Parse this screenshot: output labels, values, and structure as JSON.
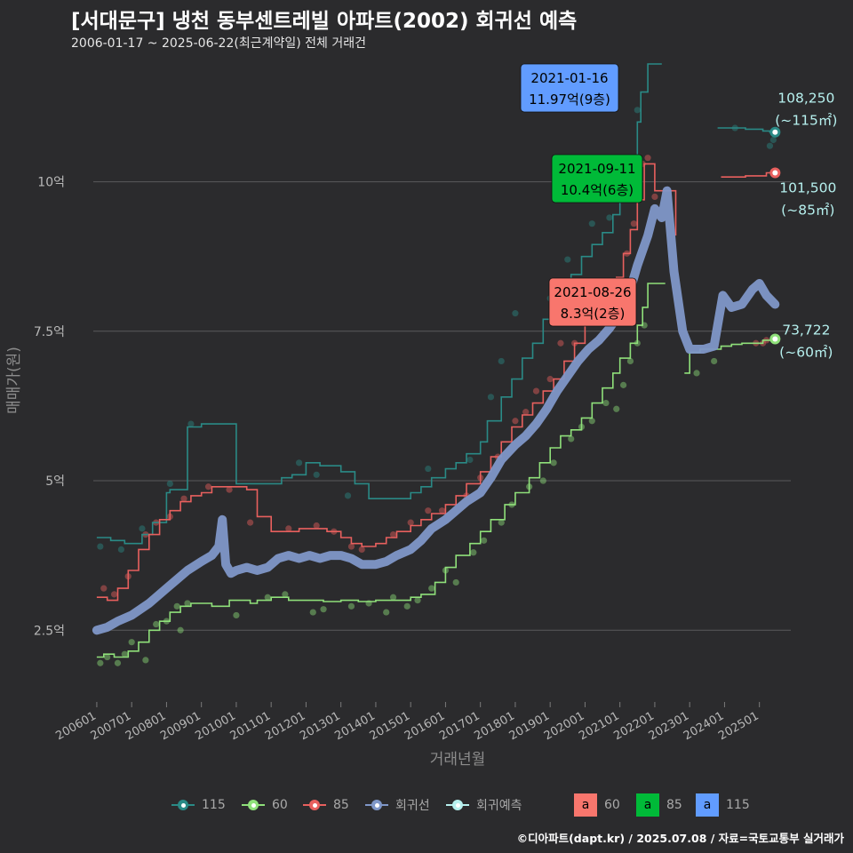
{
  "header": {
    "title": "[서대문구] 냉천 동부센트레빌 아파트(2002) 회귀선 예측",
    "subtitle": "2006-01-17 ~ 2025-06-22(최근계약일) 전체 거래건"
  },
  "footer": "©디아파트(dapt.kr) / 2025.07.08 / 자료=국토교통부 실거래가",
  "colors": {
    "background": "#2b2b2d",
    "s115": "#2a8a86",
    "s60": "#8fe07a",
    "s85": "#e8605e",
    "regression": "#7f97c8",
    "prediction": "#b6f0ee",
    "box60": "#f8766d",
    "box85": "#00ba38",
    "box115": "#619cff"
  },
  "legend": {
    "items": [
      {
        "label": "115",
        "color": "#2a8a86"
      },
      {
        "label": "60",
        "color": "#8fe07a"
      },
      {
        "label": "85",
        "color": "#e8605e"
      },
      {
        "label": "회귀선",
        "color": "#7f97c8"
      },
      {
        "label": "회귀예측",
        "color": "#b6f0ee"
      }
    ],
    "box_letter": "a",
    "boxes": [
      {
        "label": "60",
        "color": "#f8766d"
      },
      {
        "label": "85",
        "color": "#00ba38"
      },
      {
        "label": "115",
        "color": "#619cff"
      }
    ]
  },
  "chart_data": {
    "type": "line",
    "title": "[서대문구] 냉천 동부센트레빌 아파트(2002) 회귀선 예측",
    "xlabel": "거래년월",
    "ylabel": "매매가(원)",
    "x_range": [
      2005.9,
      2025.9
    ],
    "ylim": [
      1.3,
      12.0
    ],
    "x_tick_positions": [
      2006,
      2007,
      2008,
      2009,
      2010,
      2011,
      2012,
      2013,
      2014,
      2015,
      2016,
      2017,
      2018,
      2019,
      2020,
      2021,
      2022,
      2023,
      2024,
      2025
    ],
    "x_tick_labels": [
      "200601",
      "200701",
      "200801",
      "200901",
      "201001",
      "201101",
      "201201",
      "201301",
      "201401",
      "201501",
      "201601",
      "201701",
      "201801",
      "201901",
      "202001",
      "202101",
      "202201",
      "202301",
      "202401",
      "202501"
    ],
    "y_ticks": [
      2.5,
      5,
      7.5,
      10
    ],
    "y_tick_labels": [
      "2.5억",
      "5억",
      "7.5억",
      "10억"
    ],
    "grid": true,
    "series": [
      {
        "name": "115",
        "color": "#2a8a86",
        "x": [
          2006.0,
          2006.4,
          2006.6,
          2006.8,
          2007.0,
          2007.3,
          2007.6,
          2008.0,
          2008.1,
          2008.6,
          2009.0,
          2009.5,
          2009.95,
          2010.0,
          2010.5,
          2011.0,
          2011.3,
          2011.6,
          2012.0,
          2012.4,
          2012.8,
          2013.0,
          2013.4,
          2013.8,
          2014.2,
          2014.6,
          2015.0,
          2015.3,
          2015.6,
          2016.0,
          2016.3,
          2016.6,
          2017.0,
          2017.2,
          2017.6,
          2017.9,
          2018.2,
          2018.5,
          2018.8,
          2019.0,
          2019.3,
          2019.6,
          2019.9,
          2020.2,
          2020.5,
          2020.8,
          2021.0,
          2021.05,
          2021.4,
          2021.5,
          2021.6,
          2021.8,
          2021.85,
          2022.2
        ],
        "values": [
          4.05,
          4.0,
          4.0,
          3.95,
          3.95,
          4.1,
          4.3,
          4.8,
          4.85,
          5.9,
          5.95,
          5.95,
          5.95,
          4.95,
          4.95,
          4.95,
          5.05,
          5.1,
          5.3,
          5.25,
          5.25,
          5.15,
          4.95,
          4.7,
          4.7,
          4.7,
          4.8,
          4.9,
          5.05,
          5.2,
          5.3,
          5.45,
          5.65,
          6.0,
          6.4,
          6.7,
          7.05,
          7.3,
          7.7,
          7.95,
          8.15,
          8.45,
          8.75,
          8.95,
          9.15,
          9.45,
          9.9,
          10.1,
          10.4,
          11.0,
          11.5,
          11.97,
          11.97,
          11.97
        ]
      },
      {
        "name": "115-recent",
        "color": "#2a8a86",
        "x": [
          2023.8,
          2024.0,
          2024.3,
          2024.6,
          2024.9,
          2025.1,
          2025.3,
          2025.45
        ],
        "values": [
          10.9,
          10.9,
          10.9,
          10.88,
          10.88,
          10.85,
          10.83,
          10.83
        ]
      },
      {
        "name": "60",
        "color": "#8fe07a",
        "x": [
          2006.0,
          2006.2,
          2006.5,
          2006.9,
          2007.2,
          2007.5,
          2007.8,
          2008.1,
          2008.4,
          2008.7,
          2009.0,
          2009.3,
          2009.8,
          2010.2,
          2010.4,
          2010.6,
          2011.0,
          2011.5,
          2012.0,
          2012.5,
          2013.0,
          2013.5,
          2014.0,
          2014.5,
          2015.0,
          2015.3,
          2015.7,
          2016.0,
          2016.3,
          2016.7,
          2017.0,
          2017.3,
          2017.7,
          2018.0,
          2018.4,
          2018.7,
          2019.0,
          2019.3,
          2019.6,
          2019.9,
          2020.2,
          2020.5,
          2020.8,
          2021.0,
          2021.3,
          2021.5,
          2021.65,
          2021.8,
          2022.0,
          2022.3
        ],
        "values": [
          2.05,
          2.1,
          2.05,
          2.15,
          2.3,
          2.5,
          2.65,
          2.8,
          2.9,
          2.95,
          2.95,
          2.9,
          3.0,
          3.0,
          2.95,
          3.0,
          3.05,
          3.0,
          3.0,
          2.98,
          3.0,
          2.98,
          3.0,
          3.0,
          3.05,
          3.1,
          3.3,
          3.55,
          3.75,
          3.95,
          4.15,
          4.35,
          4.6,
          4.8,
          5.05,
          5.3,
          5.55,
          5.75,
          5.85,
          6.05,
          6.3,
          6.55,
          6.8,
          7.05,
          7.3,
          7.6,
          7.9,
          8.3,
          8.3,
          8.3
        ]
      },
      {
        "name": "60-recent",
        "color": "#8fe07a",
        "x": [
          2022.85,
          2023.0,
          2023.3,
          2023.6,
          2023.9,
          2024.2,
          2024.5,
          2024.8,
          2025.1,
          2025.45
        ],
        "values": [
          6.8,
          7.15,
          7.2,
          7.2,
          7.25,
          7.28,
          7.3,
          7.3,
          7.35,
          7.37
        ]
      },
      {
        "name": "85",
        "color": "#e8605e",
        "x": [
          2006.0,
          2006.3,
          2006.6,
          2006.9,
          2007.2,
          2007.5,
          2007.8,
          2008.1,
          2008.4,
          2008.7,
          2009.0,
          2009.3,
          2009.6,
          2010.0,
          2010.3,
          2010.6,
          2011.0,
          2011.4,
          2011.8,
          2012.2,
          2012.6,
          2013.0,
          2013.3,
          2013.6,
          2014.0,
          2014.3,
          2014.6,
          2015.0,
          2015.3,
          2015.6,
          2016.0,
          2016.3,
          2016.6,
          2017.0,
          2017.3,
          2017.6,
          2017.9,
          2018.2,
          2018.5,
          2018.8,
          2019.1,
          2019.4,
          2019.7,
          2020.0,
          2020.3,
          2020.6,
          2020.9,
          2021.1,
          2021.3,
          2021.5,
          2021.7,
          2022.0,
          2022.3,
          2022.6
        ],
        "values": [
          3.05,
          3.0,
          3.2,
          3.5,
          3.85,
          4.1,
          4.35,
          4.5,
          4.65,
          4.75,
          4.8,
          4.9,
          4.9,
          4.9,
          4.85,
          4.4,
          4.15,
          4.15,
          4.2,
          4.2,
          4.15,
          4.05,
          3.95,
          3.9,
          3.95,
          4.05,
          4.15,
          4.25,
          4.35,
          4.45,
          4.6,
          4.75,
          4.95,
          5.15,
          5.4,
          5.65,
          5.9,
          6.1,
          6.3,
          6.5,
          6.7,
          7.0,
          7.3,
          7.6,
          7.9,
          8.1,
          8.4,
          8.8,
          9.2,
          9.7,
          10.3,
          9.85,
          9.85,
          9.1
        ]
      },
      {
        "name": "85-recent",
        "color": "#e8605e",
        "x": [
          2023.9,
          2024.2,
          2024.6,
          2024.9,
          2025.2,
          2025.45
        ],
        "values": [
          10.08,
          10.08,
          10.1,
          10.1,
          10.15,
          10.15
        ]
      },
      {
        "name": "회귀선",
        "color": "#7f97c8",
        "x": [
          2006.0,
          2006.3,
          2006.6,
          2007.0,
          2007.5,
          2008.0,
          2008.3,
          2008.6,
          2009.0,
          2009.3,
          2009.5,
          2009.6,
          2009.7,
          2009.85,
          2010.0,
          2010.3,
          2010.6,
          2010.9,
          2011.2,
          2011.5,
          2011.8,
          2012.1,
          2012.4,
          2012.7,
          2013.0,
          2013.3,
          2013.6,
          2014.0,
          2014.3,
          2014.6,
          2015.0,
          2015.3,
          2015.6,
          2016.0,
          2016.3,
          2016.6,
          2017.0,
          2017.3,
          2017.6,
          2018.0,
          2018.3,
          2018.6,
          2018.9,
          2019.2,
          2019.5,
          2019.8,
          2020.1,
          2020.4,
          2020.7,
          2021.0,
          2021.3,
          2021.5,
          2021.8,
          2022.0,
          2022.2,
          2022.35,
          2022.55,
          2022.8,
          2023.0,
          2023.4,
          2023.7,
          2023.95,
          2024.2,
          2024.5,
          2024.8,
          2025.0,
          2025.2,
          2025.45
        ],
        "values": [
          2.5,
          2.55,
          2.65,
          2.75,
          2.95,
          3.2,
          3.35,
          3.5,
          3.65,
          3.75,
          3.9,
          4.35,
          3.6,
          3.45,
          3.5,
          3.55,
          3.5,
          3.55,
          3.7,
          3.75,
          3.7,
          3.75,
          3.7,
          3.75,
          3.75,
          3.7,
          3.6,
          3.6,
          3.65,
          3.75,
          3.85,
          4.0,
          4.2,
          4.35,
          4.5,
          4.65,
          4.8,
          5.05,
          5.35,
          5.6,
          5.75,
          5.95,
          6.2,
          6.5,
          6.75,
          7.0,
          7.2,
          7.35,
          7.55,
          7.8,
          8.2,
          8.6,
          9.1,
          9.55,
          9.4,
          9.85,
          8.5,
          7.5,
          7.2,
          7.2,
          7.25,
          8.1,
          7.9,
          7.95,
          8.2,
          8.3,
          8.1,
          7.95
        ]
      }
    ],
    "scatter": [
      {
        "name": "115",
        "color": "#2a8a86",
        "points": [
          [
            2006.1,
            3.9
          ],
          [
            2006.7,
            3.85
          ],
          [
            2007.3,
            4.2
          ],
          [
            2008.1,
            4.95
          ],
          [
            2008.7,
            5.95
          ],
          [
            2011.8,
            5.3
          ],
          [
            2012.3,
            5.1
          ],
          [
            2013.2,
            4.75
          ],
          [
            2015.5,
            5.2
          ],
          [
            2016.7,
            5.35
          ],
          [
            2017.3,
            6.4
          ],
          [
            2017.6,
            7.0
          ],
          [
            2018.0,
            7.8
          ],
          [
            2019.0,
            8.05
          ],
          [
            2019.5,
            8.7
          ],
          [
            2020.2,
            9.3
          ],
          [
            2020.7,
            9.4
          ],
          [
            2021.1,
            9.9
          ],
          [
            2021.5,
            11.2
          ],
          [
            2024.3,
            10.9
          ],
          [
            2025.4,
            10.7
          ],
          [
            2025.3,
            10.6
          ]
        ]
      },
      {
        "name": "60",
        "color": "#8fe07a",
        "points": [
          [
            2006.1,
            1.95
          ],
          [
            2006.3,
            2.05
          ],
          [
            2006.6,
            1.95
          ],
          [
            2006.8,
            2.1
          ],
          [
            2007.0,
            2.3
          ],
          [
            2007.4,
            2.0
          ],
          [
            2007.7,
            2.6
          ],
          [
            2008.0,
            2.65
          ],
          [
            2008.3,
            2.9
          ],
          [
            2008.6,
            2.95
          ],
          [
            2008.4,
            2.5
          ],
          [
            2010.0,
            2.75
          ],
          [
            2010.9,
            3.05
          ],
          [
            2011.4,
            3.1
          ],
          [
            2012.2,
            2.8
          ],
          [
            2012.5,
            2.85
          ],
          [
            2013.3,
            2.9
          ],
          [
            2013.8,
            2.95
          ],
          [
            2014.3,
            2.8
          ],
          [
            2014.5,
            3.05
          ],
          [
            2014.9,
            2.9
          ],
          [
            2015.2,
            3.0
          ],
          [
            2015.6,
            3.2
          ],
          [
            2016.0,
            3.5
          ],
          [
            2016.3,
            3.3
          ],
          [
            2016.8,
            3.8
          ],
          [
            2017.1,
            4.0
          ],
          [
            2017.6,
            4.3
          ],
          [
            2017.9,
            4.6
          ],
          [
            2018.4,
            4.9
          ],
          [
            2018.8,
            5.0
          ],
          [
            2019.1,
            5.3
          ],
          [
            2019.6,
            5.7
          ],
          [
            2019.9,
            5.9
          ],
          [
            2020.2,
            6.0
          ],
          [
            2020.6,
            6.3
          ],
          [
            2020.9,
            6.2
          ],
          [
            2021.1,
            6.6
          ],
          [
            2021.3,
            7.0
          ],
          [
            2021.5,
            7.3
          ],
          [
            2021.7,
            7.6
          ],
          [
            2023.2,
            6.8
          ],
          [
            2023.7,
            7.0
          ]
        ]
      },
      {
        "name": "85",
        "color": "#e8605e",
        "points": [
          [
            2006.2,
            3.2
          ],
          [
            2006.5,
            3.1
          ],
          [
            2006.9,
            3.4
          ],
          [
            2007.4,
            4.1
          ],
          [
            2007.7,
            4.3
          ],
          [
            2008.1,
            4.4
          ],
          [
            2008.5,
            4.7
          ],
          [
            2009.2,
            4.9
          ],
          [
            2009.8,
            4.85
          ],
          [
            2010.4,
            4.3
          ],
          [
            2011.5,
            4.2
          ],
          [
            2012.3,
            4.25
          ],
          [
            2012.8,
            4.15
          ],
          [
            2013.3,
            3.9
          ],
          [
            2013.6,
            3.85
          ],
          [
            2014.5,
            4.1
          ],
          [
            2015.0,
            4.3
          ],
          [
            2015.5,
            4.5
          ],
          [
            2015.9,
            4.5
          ],
          [
            2016.6,
            4.75
          ],
          [
            2017.0,
            5.05
          ],
          [
            2017.5,
            5.4
          ],
          [
            2018.0,
            6.0
          ],
          [
            2018.3,
            6.15
          ],
          [
            2018.6,
            6.5
          ],
          [
            2019.0,
            6.7
          ],
          [
            2019.3,
            7.3
          ],
          [
            2019.7,
            7.3
          ],
          [
            2020.3,
            7.7
          ],
          [
            2020.8,
            8.2
          ],
          [
            2021.2,
            8.8
          ],
          [
            2021.4,
            9.3
          ],
          [
            2021.65,
            10.3
          ],
          [
            2021.8,
            10.4
          ],
          [
            2022.0,
            9.75
          ],
          [
            2024.9,
            7.3
          ],
          [
            2025.1,
            7.3
          ],
          [
            2025.2,
            7.35
          ]
        ]
      }
    ],
    "callouts": [
      {
        "date": "2021-01-16",
        "value_text": "11.97억(9층)",
        "x": 2021.04,
        "y": 11.97,
        "color": "#619cff"
      },
      {
        "date": "2021-09-11",
        "value_text": "10.4억(6층)",
        "x": 2021.7,
        "y": 10.4,
        "color": "#00ba38"
      },
      {
        "date": "2021-08-26",
        "value_text": "8.3억(2층)",
        "x": 2021.65,
        "y": 8.3,
        "color": "#f8766d"
      }
    ],
    "end_labels": [
      {
        "value_text": "108,250",
        "area_text": "(~115㎡)",
        "x": 2025.45,
        "y": 10.83,
        "color": "#2a8a86"
      },
      {
        "value_text": "101,500",
        "area_text": "(~85㎡)",
        "x": 2025.45,
        "y": 10.15,
        "color": "#e8605e"
      },
      {
        "value_text": "73,722",
        "area_text": "(~60㎡)",
        "x": 2025.45,
        "y": 7.37,
        "color": "#8fe07a"
      }
    ]
  }
}
